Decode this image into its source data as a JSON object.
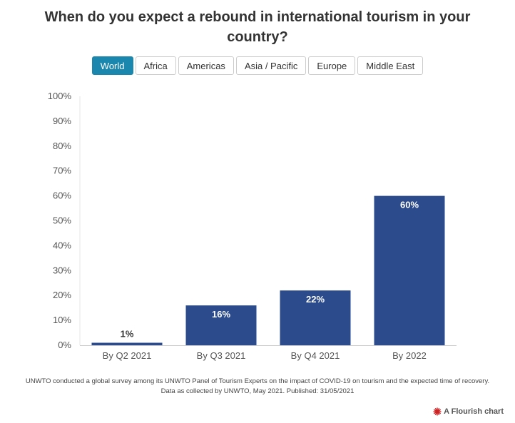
{
  "title": "When do you expect a rebound in international tourism in your country?",
  "tabs": [
    {
      "label": "World",
      "active": true
    },
    {
      "label": "Africa",
      "active": false
    },
    {
      "label": "Americas",
      "active": false
    },
    {
      "label": "Asia / Pacific",
      "active": false
    },
    {
      "label": "Europe",
      "active": false
    },
    {
      "label": "Middle East",
      "active": false
    }
  ],
  "colors": {
    "bar": "#2b4b8c",
    "active_tab": "#1a87ae",
    "grid": "#dddddd",
    "brand": "#cc2222"
  },
  "chart_data": {
    "type": "bar",
    "categories": [
      "By Q2 2021",
      "By Q3 2021",
      "By Q4 2021",
      "By 2022"
    ],
    "values": [
      1,
      16,
      22,
      60
    ],
    "labels": [
      "1%",
      "16%",
      "22%",
      "60%"
    ],
    "ylim": [
      0,
      100
    ],
    "yticks": [
      0,
      10,
      20,
      30,
      40,
      50,
      60,
      70,
      80,
      90,
      100
    ],
    "ytick_labels": [
      "0%",
      "10%",
      "20%",
      "30%",
      "40%",
      "50%",
      "60%",
      "70%",
      "80%",
      "90%",
      "100%"
    ],
    "grid": false
  },
  "footnote": {
    "line1": "UNWTO conducted a global survey among its UNWTO Panel of Tourism Experts on the impact of COVID-19 on tourism and the expected time of recovery.",
    "line2": "Data as collected by UNWTO, May 2021. Published: 31/05/2021"
  },
  "brand": {
    "label": "A Flourish chart",
    "icon": "flourish-logo-icon"
  }
}
